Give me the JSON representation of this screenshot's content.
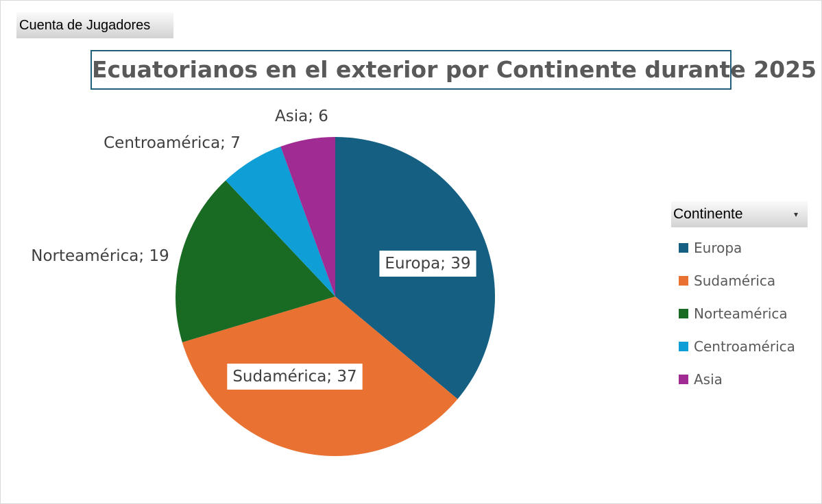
{
  "field_button": {
    "label": "Cuenta de Jugadores"
  },
  "legend_header": {
    "label": "Continente",
    "dropdown_icon": "dropdown-arrow-icon"
  },
  "chart_data": {
    "type": "pie",
    "title": "Ecuatorianos en el exterior por Continente durante 2025",
    "categories": [
      "Europa",
      "Sudamérica",
      "Norteamérica",
      "Centroamérica",
      "Asia"
    ],
    "values": [
      39,
      37,
      19,
      7,
      6
    ],
    "data_labels": [
      "Europa; 39",
      "Sudamérica; 37",
      "Norteamérica; 19",
      "Centroamérica; 7",
      "Asia; 6"
    ],
    "colors": [
      "#156082",
      "#e97132",
      "#196b24",
      "#0f9ed5",
      "#a02b93"
    ],
    "legend_position": "right",
    "legend": [
      "Europa",
      "Sudamérica",
      "Norteamérica",
      "Centroamérica",
      "Asia"
    ]
  }
}
